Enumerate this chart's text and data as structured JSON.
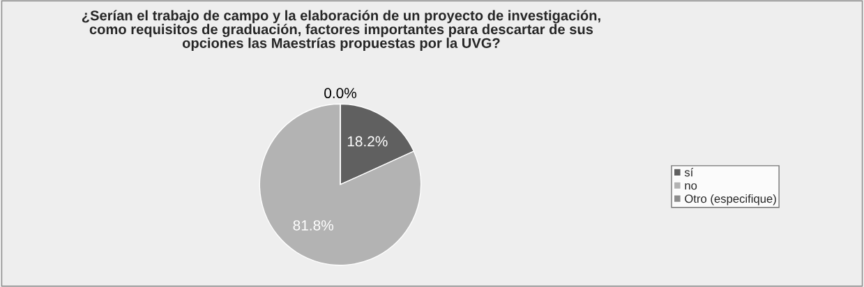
{
  "chart_data": {
    "type": "pie",
    "title": "¿Serían el trabajo de campo y la elaboración de un proyecto de investigación,\ncomo requisitos de graduación, factores importantes para descartar de sus\nopciones las Maestrías propuestas por la UVG?",
    "categories": [
      "sí",
      "no",
      "Otro (especifique)"
    ],
    "values": [
      18.2,
      81.8,
      0.0
    ],
    "colors": [
      "#606060",
      "#b3b3b3",
      "#8c8c8c"
    ],
    "value_labels": [
      "18.2%",
      "81.8%",
      "0.0%"
    ],
    "legend": "right"
  }
}
